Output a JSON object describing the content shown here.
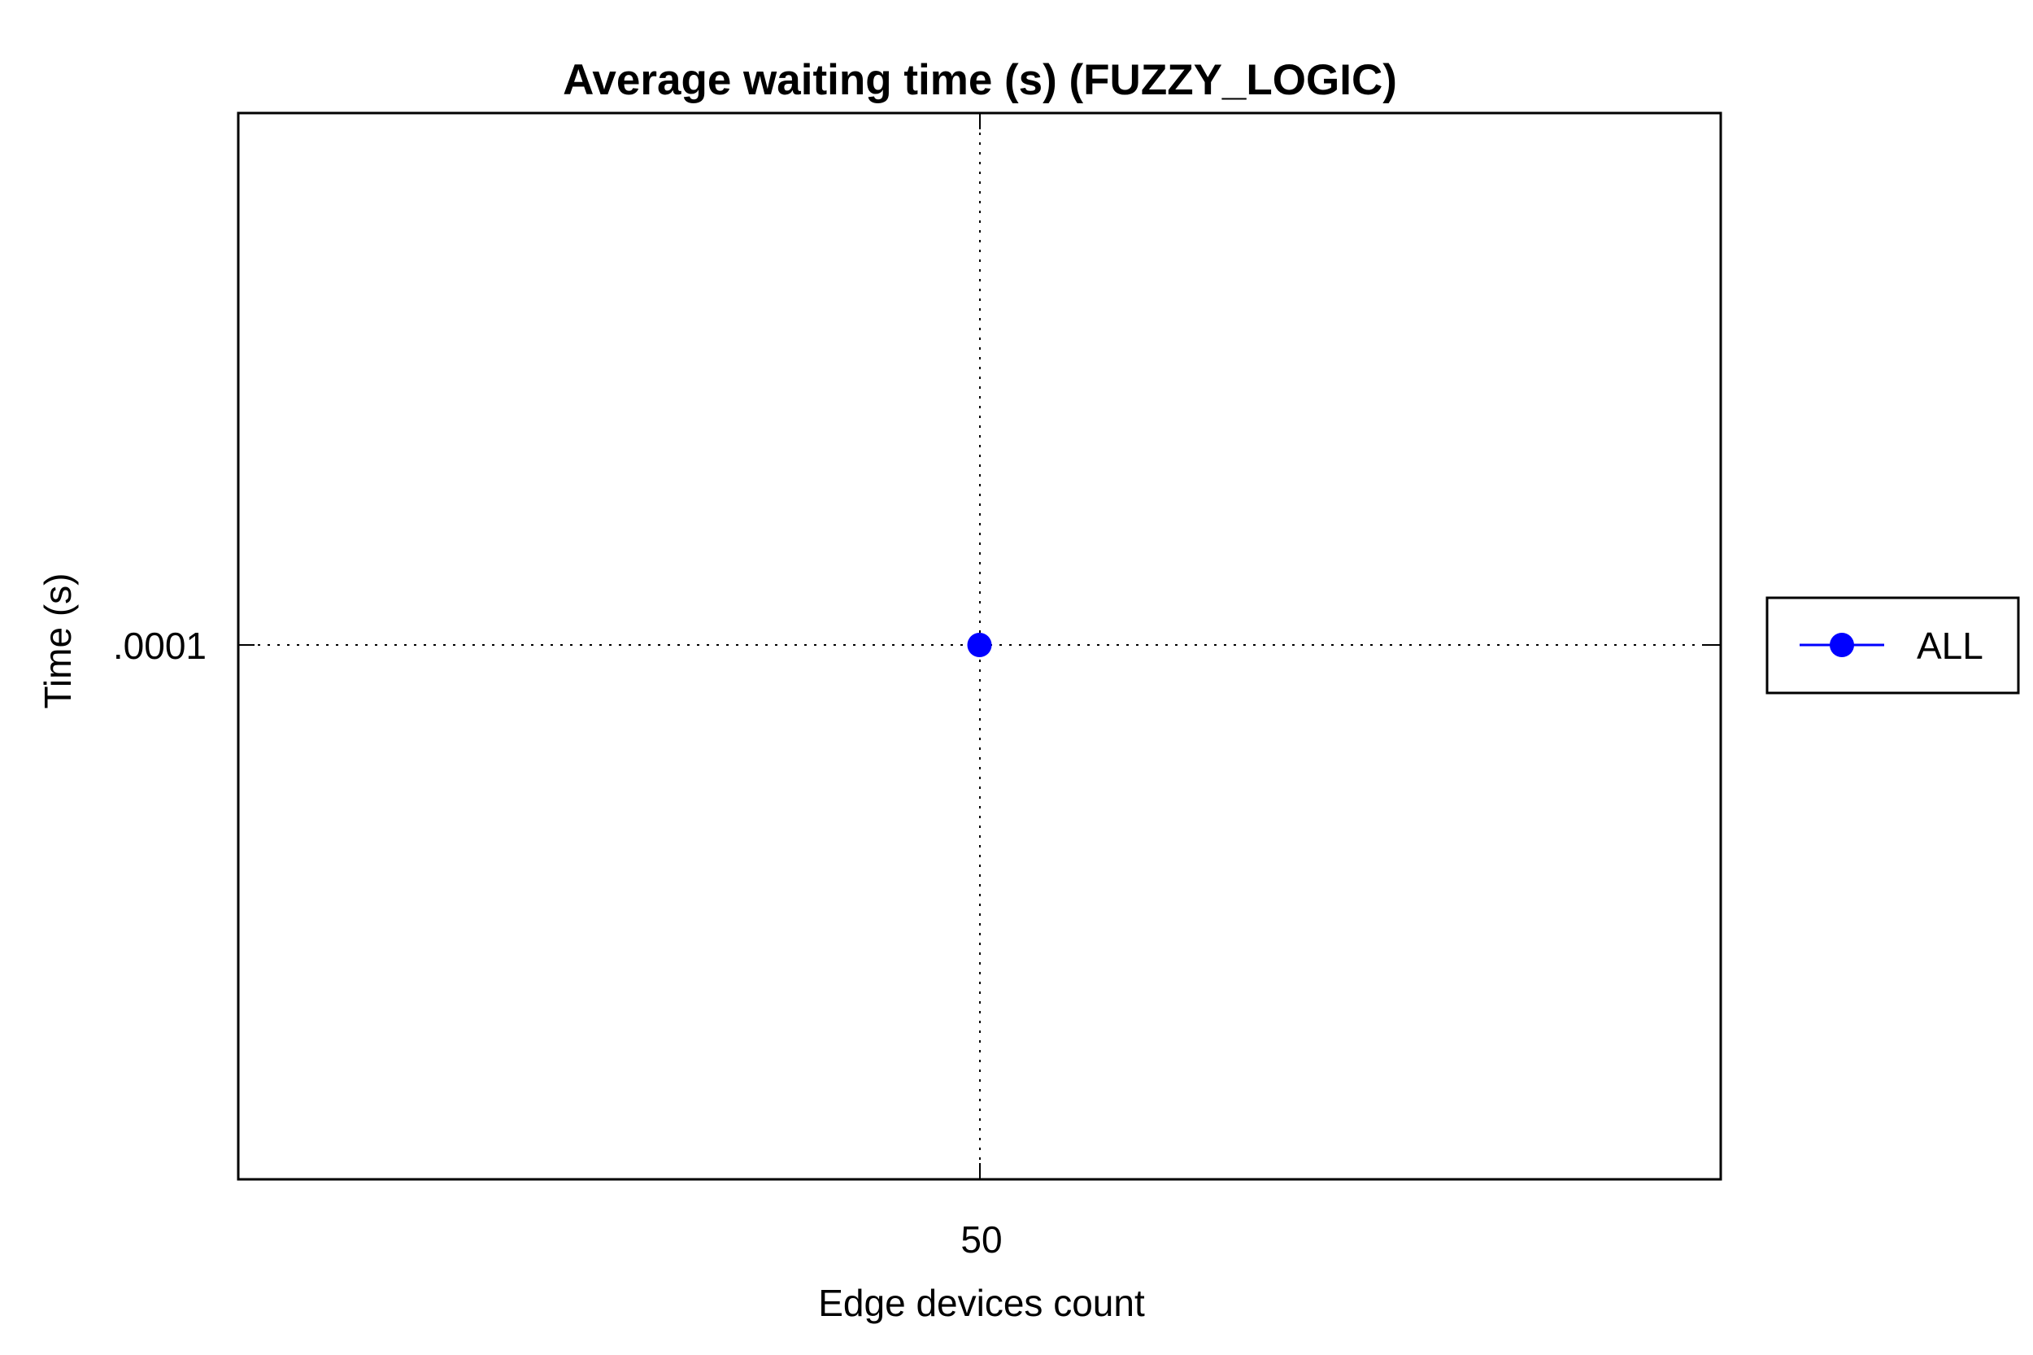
{
  "chart_data": {
    "type": "line",
    "title": "Average waiting time (s) (FUZZY_LOGIC)",
    "xlabel": "Edge devices count",
    "ylabel": "Time (s)",
    "x_ticks": [
      "50"
    ],
    "y_ticks": [
      ".0001"
    ],
    "grid": true,
    "legend_position": "right",
    "series": [
      {
        "name": "ALL",
        "color": "#0000ff",
        "marker": "circle",
        "x": [
          50
        ],
        "y": [
          0.0001
        ]
      }
    ]
  }
}
